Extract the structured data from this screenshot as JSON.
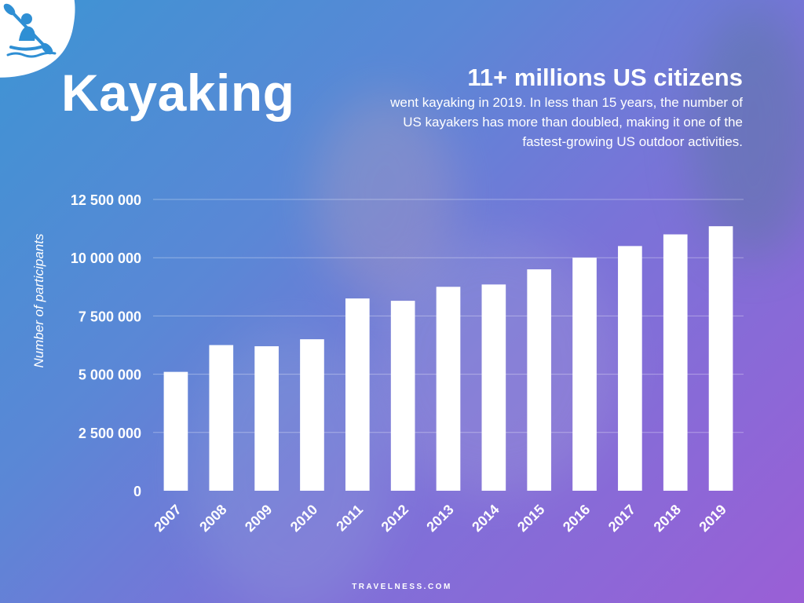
{
  "header": {
    "title": "Kayaking",
    "headline": "11+ millions US citizens",
    "description": "went kayaking in 2019. In less than 15 years, the number of US kayakers has more than doubled, making it one of the fastest-growing US outdoor activities."
  },
  "logo": {
    "icon": "kayaker-icon"
  },
  "footer": {
    "brand": "TRAVELNESS.COM"
  },
  "colors": {
    "bar": "#ffffff",
    "text": "#ffffff",
    "logo_bg": "#ffffff",
    "logo_icon": "#2f8fd4"
  },
  "chart_data": {
    "type": "bar",
    "categories": [
      "2007",
      "2008",
      "2009",
      "2010",
      "2011",
      "2012",
      "2013",
      "2014",
      "2015",
      "2016",
      "2017",
      "2018",
      "2019"
    ],
    "values": [
      5100000,
      6250000,
      6200000,
      6500000,
      8250000,
      8150000,
      8750000,
      8850000,
      9500000,
      10000000,
      10500000,
      11000000,
      11350000
    ],
    "ylabel": "Number of participants",
    "xlabel": "",
    "ylim": [
      0,
      12500000
    ],
    "yticks": [
      0,
      2500000,
      5000000,
      7500000,
      10000000,
      12500000
    ],
    "ytick_labels": [
      "0",
      "2 500 000",
      "5 000 000",
      "7 500 000",
      "10 000 000",
      "12 500 000"
    ],
    "grid": true,
    "x_tick_rotation": "diagonal"
  }
}
